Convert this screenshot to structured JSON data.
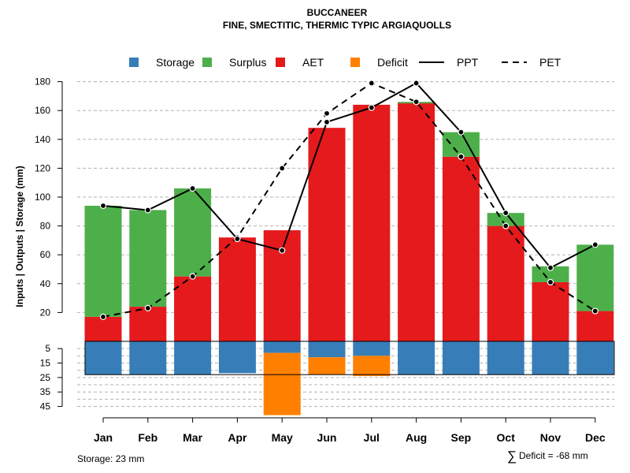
{
  "chart_data": {
    "type": "bar",
    "title": "BUCCANEER",
    "subtitle": "FINE, SMECTITIC, THERMIC TYPIC ARGIAQUOLLS",
    "ylabel": "Inputs | Outputs | Storage    (mm)",
    "upper_ylim": [
      0,
      180
    ],
    "upper_ticks": [
      20,
      40,
      60,
      80,
      100,
      120,
      140,
      160,
      180
    ],
    "lower_ylim": [
      0,
      45
    ],
    "lower_ticks": [
      5,
      15,
      25,
      35,
      45
    ],
    "categories": [
      "Jan",
      "Feb",
      "Mar",
      "Apr",
      "May",
      "Jun",
      "Jul",
      "Aug",
      "Sep",
      "Oct",
      "Nov",
      "Dec"
    ],
    "legend": [
      {
        "key": "storage",
        "label": "Storage",
        "symbol": "square",
        "color": "#377EB8"
      },
      {
        "key": "surplus",
        "label": "Surplus",
        "symbol": "square",
        "color": "#4DAF4A"
      },
      {
        "key": "aet",
        "label": "AET",
        "symbol": "square",
        "color": "#E41A1C"
      },
      {
        "key": "deficit",
        "label": "Deficit",
        "symbol": "square",
        "color": "#FF7F00"
      },
      {
        "key": "ppt",
        "label": "PPT",
        "symbol": "solid"
      },
      {
        "key": "pet",
        "label": "PET",
        "symbol": "dashed"
      }
    ],
    "series": {
      "aet": [
        17,
        24,
        45,
        72,
        77,
        148,
        164,
        165,
        128,
        80,
        41,
        21
      ],
      "surplus": [
        77,
        67,
        61,
        0,
        0,
        0,
        0,
        1,
        17,
        9,
        11,
        46
      ],
      "ppt": [
        94,
        91,
        106,
        71,
        63,
        152,
        162,
        179,
        145,
        89,
        51,
        67
      ],
      "pet": [
        17,
        23,
        45,
        72,
        120,
        158,
        179,
        166,
        128,
        80,
        41,
        21
      ],
      "storage": [
        23,
        23,
        23,
        22,
        8,
        11,
        10,
        23,
        23,
        23,
        23,
        23
      ],
      "deficit": [
        0,
        0,
        0,
        0,
        43,
        12,
        14,
        0,
        0,
        0,
        0,
        0
      ]
    },
    "storage_capacity": 23
  },
  "footer": {
    "storage_text": "Storage: 23 mm",
    "deficit_symbol": "∑",
    "deficit_text": "Deficit = -68 mm"
  }
}
